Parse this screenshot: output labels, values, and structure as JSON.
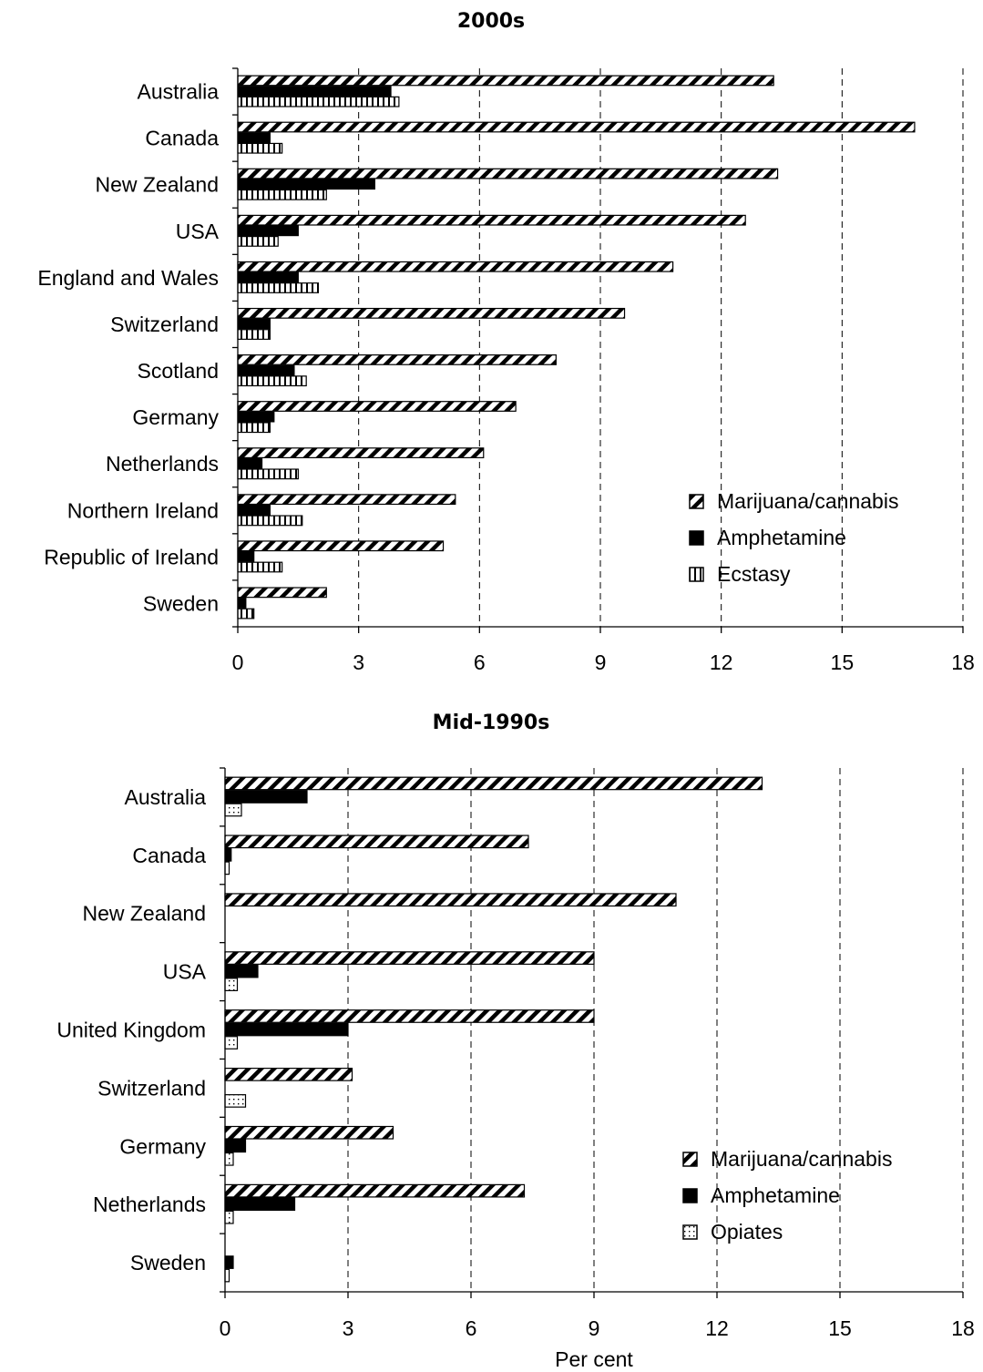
{
  "chart_data": [
    {
      "type": "bar",
      "orientation": "horizontal",
      "title": "2000s",
      "xlabel": "",
      "xlim": [
        0,
        18
      ],
      "xticks": [
        0,
        3,
        6,
        9,
        12,
        15,
        18
      ],
      "grid": "vertical dashed",
      "legend_position": "bottom-right",
      "categories": [
        "Australia",
        "Canada",
        "New Zealand",
        "USA",
        "England and Wales",
        "Switzerland",
        "Scotland",
        "Germany",
        "Netherlands",
        "Northern Ireland",
        "Republic of Ireland",
        "Sweden"
      ],
      "series": [
        {
          "name": "Marijuana/cannabis",
          "pattern": "diagonal",
          "values": [
            13.3,
            16.8,
            13.4,
            12.6,
            10.8,
            9.6,
            7.9,
            6.9,
            6.1,
            5.4,
            5.1,
            2.2
          ]
        },
        {
          "name": "Amphetamine",
          "pattern": "solid",
          "values": [
            3.8,
            0.8,
            3.4,
            1.5,
            1.5,
            0.8,
            1.4,
            0.9,
            0.6,
            0.8,
            0.4,
            0.2
          ]
        },
        {
          "name": "Ecstasy",
          "pattern": "vertical",
          "values": [
            4.0,
            1.1,
            2.2,
            1.0,
            2.0,
            0.8,
            1.7,
            0.8,
            1.5,
            1.6,
            1.1,
            0.4
          ]
        }
      ]
    },
    {
      "type": "bar",
      "orientation": "horizontal",
      "title": "Mid-1990s",
      "xlabel": "Per cent",
      "xlim": [
        0,
        18
      ],
      "xticks": [
        0,
        3,
        6,
        9,
        12,
        15,
        18
      ],
      "grid": "vertical dashed",
      "legend_position": "bottom-right",
      "categories": [
        "Australia",
        "Canada",
        "New Zealand",
        "USA",
        "United Kingdom",
        "Switzerland",
        "Germany",
        "Netherlands",
        "Sweden"
      ],
      "series": [
        {
          "name": "Marijuana/cannabis",
          "pattern": "diagonal",
          "values": [
            13.1,
            7.4,
            11.0,
            9.0,
            9.0,
            3.1,
            4.1,
            7.3,
            0
          ]
        },
        {
          "name": "Amphetamine",
          "pattern": "solid",
          "values": [
            2.0,
            0.15,
            0,
            0.8,
            3.0,
            0,
            0.5,
            1.7,
            0.2
          ]
        },
        {
          "name": "Opiates",
          "pattern": "dotted",
          "values": [
            0.4,
            0.1,
            0,
            0.3,
            0.3,
            0.5,
            0.2,
            0.2,
            0.1
          ]
        }
      ]
    }
  ]
}
